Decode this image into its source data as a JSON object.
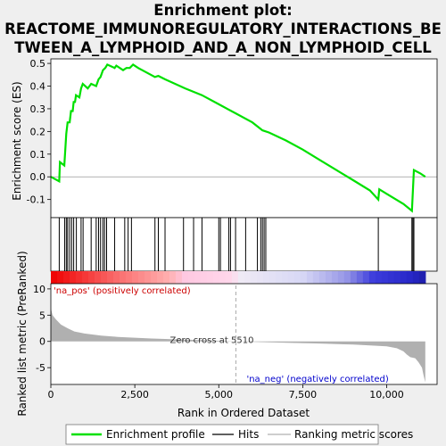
{
  "title_lines": [
    "Enrichment plot:",
    "REACTOME_IMMUNOREGULATORY_INTERACTIONS_BE",
    "TWEEN_A_LYMPHOID_AND_A_NON_LYMPHOID_CELL"
  ],
  "colors": {
    "es_line": "#00e000",
    "hits": "#000000",
    "metric_fill": "#b0b0b0",
    "zero_cross": "#aaaaaa",
    "background": "#efefef"
  },
  "chart_data": {
    "type": "line",
    "x_range": [
      0,
      11500
    ],
    "x_ticks": [
      0,
      2500,
      5000,
      7500,
      10000
    ],
    "x_tick_labels": [
      "0",
      "2,500",
      "5,000",
      "7,500",
      "10,000"
    ],
    "xlabel": "Rank in Ordered Dataset",
    "es_panel": {
      "ylabel": "Enrichment score (ES)",
      "ylim": [
        -0.18,
        0.52
      ],
      "y_ticks": [
        -0.1,
        0.0,
        0.1,
        0.2,
        0.3,
        0.4,
        0.5
      ],
      "y_tick_labels": [
        "-0.1",
        "0.0",
        "0.1",
        "0.2",
        "0.3",
        "0.4",
        "0.5"
      ],
      "profile": [
        [
          0,
          0.0
        ],
        [
          250,
          -0.02
        ],
        [
          270,
          0.065
        ],
        [
          400,
          0.05
        ],
        [
          430,
          0.12
        ],
        [
          460,
          0.19
        ],
        [
          500,
          0.24
        ],
        [
          560,
          0.24
        ],
        [
          600,
          0.29
        ],
        [
          650,
          0.29
        ],
        [
          680,
          0.33
        ],
        [
          720,
          0.33
        ],
        [
          750,
          0.36
        ],
        [
          850,
          0.35
        ],
        [
          900,
          0.39
        ],
        [
          950,
          0.41
        ],
        [
          1100,
          0.39
        ],
        [
          1200,
          0.41
        ],
        [
          1350,
          0.4
        ],
        [
          1420,
          0.43
        ],
        [
          1480,
          0.44
        ],
        [
          1550,
          0.47
        ],
        [
          1620,
          0.48
        ],
        [
          1680,
          0.495
        ],
        [
          1900,
          0.48
        ],
        [
          1950,
          0.49
        ],
        [
          2150,
          0.47
        ],
        [
          2250,
          0.48
        ],
        [
          2350,
          0.48
        ],
        [
          2450,
          0.495
        ],
        [
          2600,
          0.48
        ],
        [
          3100,
          0.44
        ],
        [
          3200,
          0.445
        ],
        [
          3400,
          0.43
        ],
        [
          3700,
          0.41
        ],
        [
          4000,
          0.39
        ],
        [
          4500,
          0.36
        ],
        [
          5000,
          0.32
        ],
        [
          5500,
          0.28
        ],
        [
          6000,
          0.24
        ],
        [
          6300,
          0.205
        ],
        [
          6500,
          0.195
        ],
        [
          7000,
          0.16
        ],
        [
          7500,
          0.12
        ],
        [
          8000,
          0.075
        ],
        [
          8500,
          0.03
        ],
        [
          9000,
          -0.015
        ],
        [
          9500,
          -0.06
        ],
        [
          9750,
          -0.1
        ],
        [
          9780,
          -0.055
        ],
        [
          10000,
          -0.075
        ],
        [
          10500,
          -0.12
        ],
        [
          10750,
          -0.15
        ],
        [
          10780,
          -0.06
        ],
        [
          10810,
          0.03
        ],
        [
          11000,
          0.015
        ],
        [
          11150,
          0.0
        ]
      ]
    },
    "hits": [
      250,
      410,
      460,
      500,
      560,
      620,
      680,
      760,
      900,
      960,
      1200,
      1350,
      1420,
      1480,
      1550,
      1600,
      1660,
      1900,
      2200,
      2300,
      2400,
      3100,
      3200,
      3400,
      3950,
      4250,
      4500,
      5000,
      5050,
      5300,
      5350,
      5500,
      5800,
      6150,
      6250,
      6300,
      6350,
      6400,
      9750,
      10750,
      10780,
      10810
    ],
    "metric_panel": {
      "ylabel": "Ranked list metric (PreRanked)",
      "ylim": [
        -8.2,
        11
      ],
      "y_ticks": [
        -5,
        0,
        5,
        10
      ],
      "y_tick_labels": [
        "-5",
        "0",
        "5",
        "10"
      ],
      "metric_curve": [
        [
          0,
          6.3
        ],
        [
          50,
          5.0
        ],
        [
          150,
          4.2
        ],
        [
          300,
          3.2
        ],
        [
          500,
          2.5
        ],
        [
          700,
          1.9
        ],
        [
          1000,
          1.5
        ],
        [
          1500,
          1.1
        ],
        [
          2000,
          0.85
        ],
        [
          2500,
          0.7
        ],
        [
          3000,
          0.55
        ],
        [
          3500,
          0.45
        ],
        [
          4000,
          0.35
        ],
        [
          4500,
          0.25
        ],
        [
          5000,
          0.12
        ],
        [
          5510,
          0.0
        ],
        [
          6000,
          -0.1
        ],
        [
          7000,
          -0.25
        ],
        [
          8000,
          -0.4
        ],
        [
          9000,
          -0.6
        ],
        [
          9500,
          -0.75
        ],
        [
          10000,
          -0.95
        ],
        [
          10300,
          -1.3
        ],
        [
          10500,
          -1.9
        ],
        [
          10600,
          -2.5
        ],
        [
          10700,
          -3.0
        ],
        [
          10850,
          -3.2
        ],
        [
          10950,
          -4.0
        ],
        [
          11050,
          -5.0
        ],
        [
          11100,
          -6.5
        ],
        [
          11150,
          -7.8
        ]
      ],
      "zero_cross": 5510,
      "zero_cross_label": "Zero cross at 5510",
      "pos_label": "'na_pos' (positively correlated)",
      "neg_label": "'na_neg' (negatively correlated)"
    },
    "legend": [
      {
        "label": "Enrichment profile",
        "kind": "line"
      },
      {
        "label": "Hits",
        "kind": "hit"
      },
      {
        "label": "Ranking metric scores",
        "kind": "metric"
      }
    ]
  }
}
